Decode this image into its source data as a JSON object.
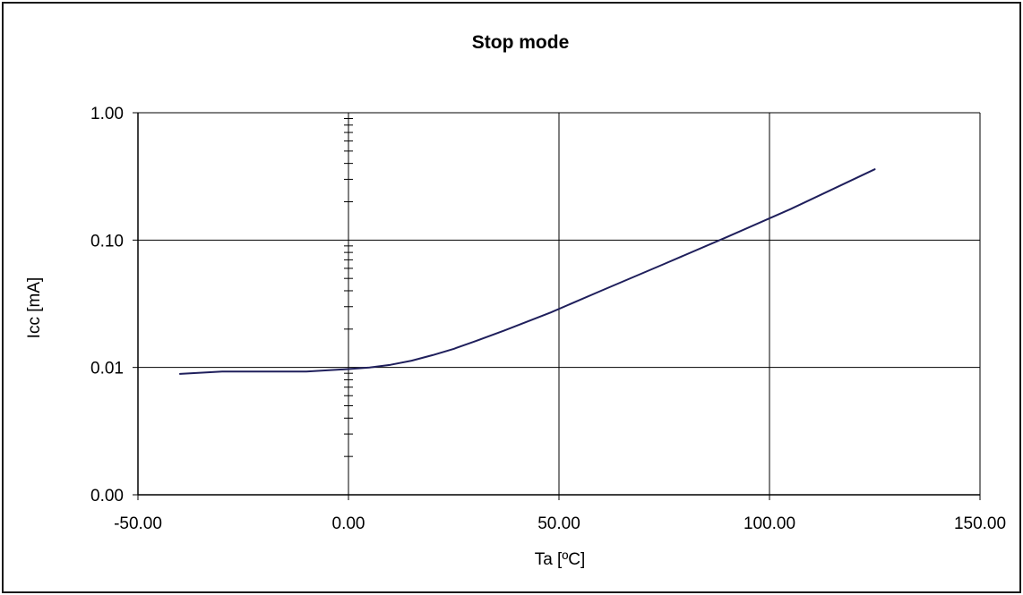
{
  "chart_data": {
    "type": "line",
    "title": "Stop mode",
    "xlabel": "Ta [ºC]",
    "ylabel": "Icc [mA]",
    "xlim": [
      -50,
      150
    ],
    "x_ticks": [
      -50,
      0,
      50,
      100,
      150
    ],
    "x_tick_labels": [
      "-50.00",
      "0.00",
      "50.00",
      "100.00",
      "150.00"
    ],
    "y_scale": "log",
    "ylim": [
      0.001,
      1
    ],
    "y_ticks": [
      0.001,
      0.01,
      0.1,
      1
    ],
    "y_tick_labels": [
      "0.00",
      "0.01",
      "0.10",
      "1.00"
    ],
    "grid": true,
    "line_color": "#1f1f5c",
    "series": [
      {
        "x": [
          -40,
          -30,
          -20,
          -10,
          0,
          5,
          10,
          15,
          20,
          25,
          30,
          37,
          48,
          60,
          75,
          90,
          105,
          125
        ],
        "values": [
          0.0089,
          0.0093,
          0.0093,
          0.0093,
          0.0097,
          0.01,
          0.0105,
          0.0113,
          0.0125,
          0.014,
          0.016,
          0.0195,
          0.027,
          0.04,
          0.065,
          0.106,
          0.175,
          0.36
        ]
      }
    ]
  }
}
